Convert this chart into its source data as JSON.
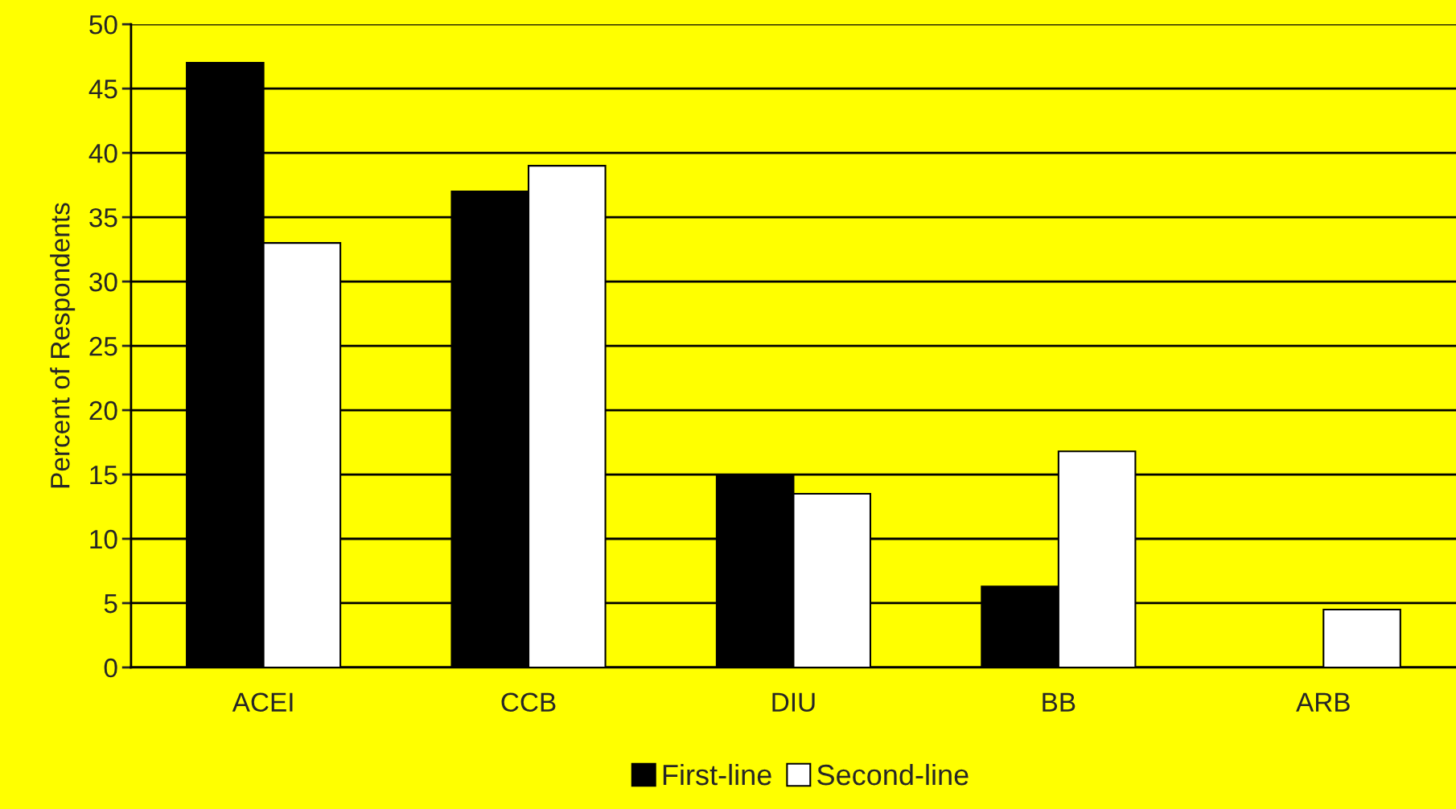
{
  "chart_data": {
    "type": "bar",
    "ylabel": "Percent of Respondents",
    "categories": [
      "ACEI",
      "CCB",
      "DIU",
      "BB",
      "ARB"
    ],
    "series": [
      {
        "name": "First-line",
        "color": "#000000",
        "values": [
          47,
          37,
          15,
          6.3,
          0
        ]
      },
      {
        "name": "Second-line",
        "color": "#ffffff",
        "values": [
          33,
          39,
          13.5,
          16.8,
          4.5
        ]
      }
    ],
    "ylim": [
      0,
      50
    ],
    "yticks": [
      0,
      5,
      10,
      15,
      20,
      25,
      30,
      35,
      40,
      45,
      50
    ],
    "grid": "y",
    "legend": "bottom"
  }
}
